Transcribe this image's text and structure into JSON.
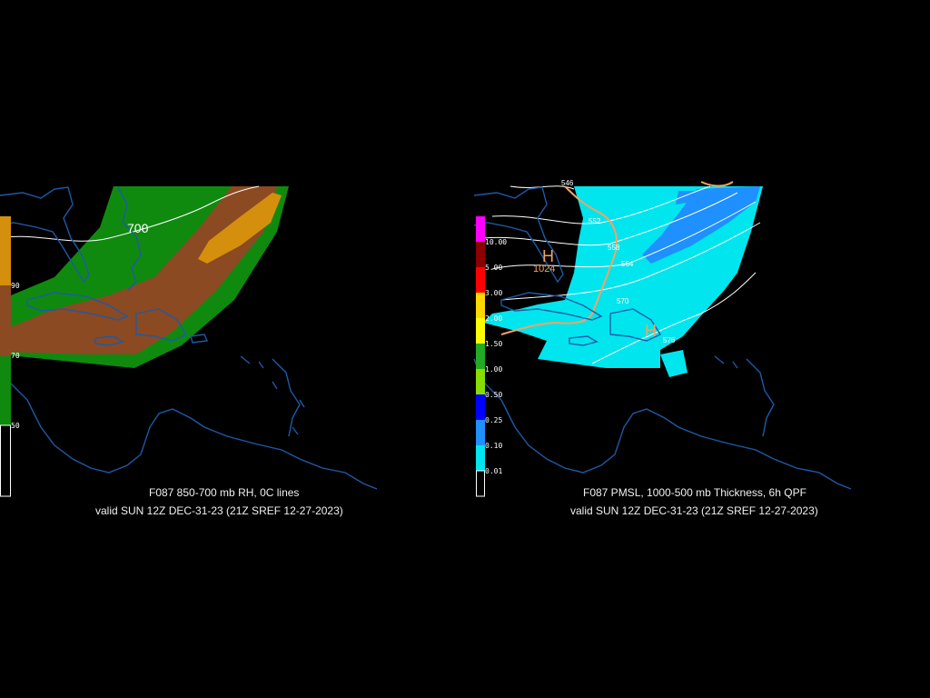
{
  "left_panel": {
    "title_line1": "F087 850-700 mb RH, 0C lines",
    "title_line2": "valid SUN 12Z DEC-31-23 (21Z SREF 12-27-2023)",
    "contour_label": "700",
    "scale_labels": [
      "90",
      "70",
      "50"
    ],
    "colors": {
      "rh_90": "#d4900c",
      "rh_70": "#8b4a22",
      "rh_50": "#0f8a0f",
      "coast": "#1d5aa8",
      "contour": "#ffffff"
    }
  },
  "right_panel": {
    "title_line1": "F087 PMSL, 1000-500 mb Thickness, 6h QPF",
    "title_line2": "valid SUN 12Z DEC-31-23 (21Z SREF 12-27-2023)",
    "high_label_1": "H",
    "high_value_1": "1024",
    "high_label_2": "H",
    "thickness_labels": [
      "546",
      "552",
      "558",
      "564",
      "570",
      "576"
    ],
    "scale_labels": [
      "10.00",
      "5.00",
      "3.00",
      "2.00",
      "1.50",
      "1.00",
      "0.50",
      "0.25",
      "0.10",
      "0.01"
    ],
    "scale_colors": [
      "#ff00ff",
      "#8b0000",
      "#ff0000",
      "#ffd700",
      "#ffff00",
      "#22aa22",
      "#88dd00",
      "#0000ff",
      "#1e90ff",
      "#00e5ee"
    ],
    "colors": {
      "qpf_light": "#00e5ee",
      "qpf_mod": "#1e90ff",
      "isobar": "#f4a460",
      "thickness": "#ffffff",
      "coast": "#1d5aa8"
    }
  }
}
